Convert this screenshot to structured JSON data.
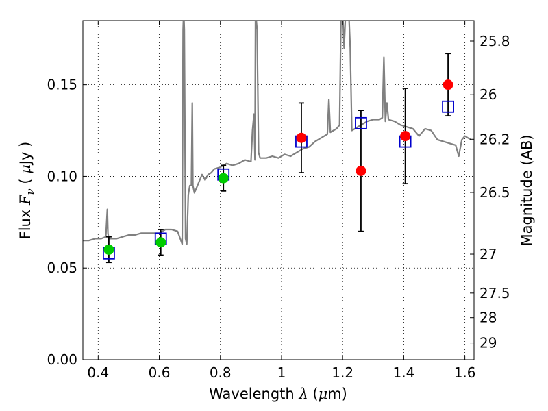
{
  "chart_data": {
    "type": "scatter",
    "title": "",
    "xlabel": {
      "prefix": "Wavelength  ",
      "symbol": "λ",
      "unit_open": " (",
      "unit_mu": "μ",
      "unit_close": "m)"
    },
    "ylabel": {
      "prefix": "Flux  ",
      "symbol": "F",
      "subscript": "ν",
      "unit_open": "  ( ",
      "unit_mu": "μ",
      "unit_close": "Jy )"
    },
    "ylabel_right": "Magnitude (AB)",
    "xlim": [
      0.35,
      1.63
    ],
    "ylim": [
      0.0,
      0.185
    ],
    "grid": true,
    "x_ticks": [
      {
        "value": 0.4,
        "label": "0.4"
      },
      {
        "value": 0.6,
        "label": "0.6"
      },
      {
        "value": 0.8,
        "label": "0.8"
      },
      {
        "value": 1.0,
        "label": "1"
      },
      {
        "value": 1.2,
        "label": "1.2"
      },
      {
        "value": 1.4,
        "label": "1.4"
      },
      {
        "value": 1.6,
        "label": "1.6"
      }
    ],
    "y_ticks": [
      {
        "value": 0.0,
        "label": "0.00"
      },
      {
        "value": 0.05,
        "label": "0.05"
      },
      {
        "value": 0.1,
        "label": "0.10"
      },
      {
        "value": 0.15,
        "label": "0.15"
      }
    ],
    "y_right_ticks": [
      {
        "value": 25.8,
        "label": "25.8"
      },
      {
        "value": 26.0,
        "label": "26"
      },
      {
        "value": 26.2,
        "label": "26.2"
      },
      {
        "value": 26.5,
        "label": "26.5"
      },
      {
        "value": 27.0,
        "label": "27"
      },
      {
        "value": 27.5,
        "label": "27.5"
      },
      {
        "value": 28.0,
        "label": "28"
      },
      {
        "value": 29.0,
        "label": "29"
      }
    ],
    "series": [
      {
        "kind": "line",
        "color": "#808080",
        "x": [
          0.35,
          0.37,
          0.39,
          0.41,
          0.425,
          0.43,
          0.432,
          0.435,
          0.44,
          0.46,
          0.48,
          0.5,
          0.52,
          0.54,
          0.56,
          0.58,
          0.6,
          0.62,
          0.64,
          0.66,
          0.675,
          0.678,
          0.68,
          0.682,
          0.686,
          0.69,
          0.695,
          0.7,
          0.705,
          0.708,
          0.71,
          0.715,
          0.72,
          0.73,
          0.74,
          0.75,
          0.76,
          0.77,
          0.78,
          0.8,
          0.82,
          0.84,
          0.86,
          0.88,
          0.9,
          0.905,
          0.91,
          0.913,
          0.915,
          0.92,
          0.925,
          0.93,
          0.95,
          0.97,
          0.99,
          1.01,
          1.03,
          1.05,
          1.07,
          1.09,
          1.11,
          1.13,
          1.15,
          1.155,
          1.16,
          1.17,
          1.18,
          1.19,
          1.195,
          1.2,
          1.205,
          1.21,
          1.215,
          1.22,
          1.225,
          1.23,
          1.24,
          1.26,
          1.28,
          1.3,
          1.32,
          1.33,
          1.335,
          1.34,
          1.345,
          1.35,
          1.37,
          1.39,
          1.41,
          1.43,
          1.45,
          1.47,
          1.49,
          1.51,
          1.53,
          1.55,
          1.57,
          1.58,
          1.59,
          1.6,
          1.62
        ],
        "y": [
          0.065,
          0.065,
          0.066,
          0.066,
          0.067,
          0.082,
          0.069,
          0.066,
          0.066,
          0.066,
          0.067,
          0.068,
          0.068,
          0.069,
          0.069,
          0.069,
          0.069,
          0.071,
          0.071,
          0.07,
          0.063,
          0.18,
          0.19,
          0.18,
          0.066,
          0.063,
          0.09,
          0.095,
          0.095,
          0.14,
          0.095,
          0.091,
          0.093,
          0.097,
          0.101,
          0.098,
          0.101,
          0.102,
          0.104,
          0.105,
          0.107,
          0.106,
          0.107,
          0.109,
          0.108,
          0.125,
          0.134,
          0.109,
          0.19,
          0.18,
          0.113,
          0.11,
          0.11,
          0.111,
          0.11,
          0.112,
          0.111,
          0.113,
          0.115,
          0.116,
          0.119,
          0.121,
          0.123,
          0.142,
          0.124,
          0.125,
          0.126,
          0.128,
          0.19,
          0.19,
          0.17,
          0.19,
          0.19,
          0.19,
          0.17,
          0.125,
          0.126,
          0.128,
          0.13,
          0.131,
          0.131,
          0.132,
          0.165,
          0.13,
          0.14,
          0.131,
          0.13,
          0.128,
          0.127,
          0.126,
          0.122,
          0.126,
          0.125,
          0.12,
          0.119,
          0.118,
          0.117,
          0.111,
          0.12,
          0.122,
          0.12
        ]
      },
      {
        "kind": "markers",
        "name": "",
        "marker": "square",
        "color": "#0000cc",
        "x": [
          0.435,
          0.605,
          0.81,
          1.065,
          1.26,
          1.405,
          1.545
        ],
        "y": [
          0.058,
          0.066,
          0.101,
          0.119,
          0.129,
          0.119,
          0.138
        ]
      },
      {
        "kind": "markers",
        "name": "",
        "marker": "circle",
        "color": "#00cc00",
        "x": [
          0.435,
          0.605,
          0.81
        ],
        "y": [
          0.06,
          0.064,
          0.099
        ],
        "yerr": [
          0.007,
          0.007,
          0.007
        ]
      },
      {
        "kind": "markers",
        "name": "",
        "marker": "circle",
        "color": "#ff0000",
        "x": [
          1.065,
          1.26,
          1.405,
          1.545
        ],
        "y": [
          0.121,
          0.103,
          0.122,
          0.15
        ],
        "yerr": [
          0.019,
          0.033,
          0.026,
          0.017
        ]
      }
    ]
  }
}
